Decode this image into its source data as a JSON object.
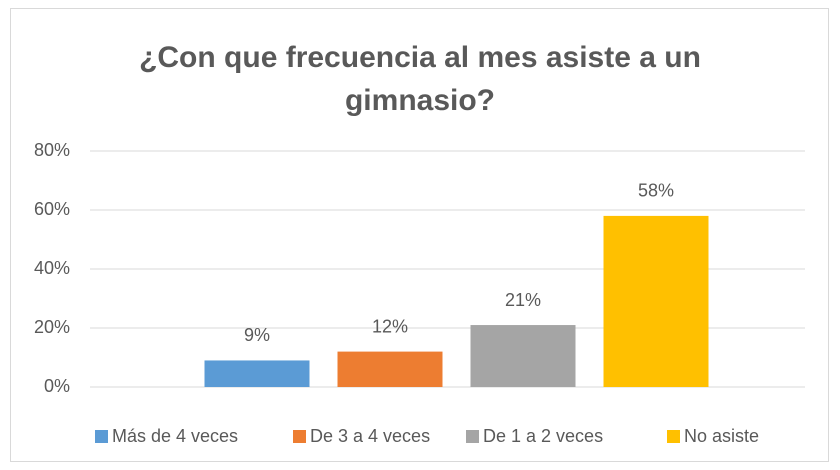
{
  "chart_data": {
    "type": "bar",
    "title": "¿Con que frecuencia al mes asiste a un gimnasio?",
    "categories": [
      null
    ],
    "series": [
      {
        "name": "Más de 4 veces",
        "color": "#5b9bd5",
        "values": [
          9
        ],
        "value_labels": [
          "9%"
        ]
      },
      {
        "name": "De 3 a 4 veces",
        "color": "#ed7d31",
        "values": [
          12
        ],
        "value_labels": [
          "12%"
        ]
      },
      {
        "name": "De 1 a 2 veces",
        "color": "#a5a5a5",
        "values": [
          21
        ],
        "value_labels": [
          "21%"
        ]
      },
      {
        "name": "No asiste",
        "color": "#ffc000",
        "values": [
          58
        ],
        "value_labels": [
          "58%"
        ]
      }
    ],
    "ylim": [
      0,
      80
    ],
    "yticks": [
      {
        "value": 0,
        "label": "0%"
      },
      {
        "value": 20,
        "label": "20%"
      },
      {
        "value": 40,
        "label": "40%"
      },
      {
        "value": 60,
        "label": "60%"
      },
      {
        "value": 80,
        "label": "80%"
      }
    ],
    "grid": true,
    "legend": "bottom"
  }
}
